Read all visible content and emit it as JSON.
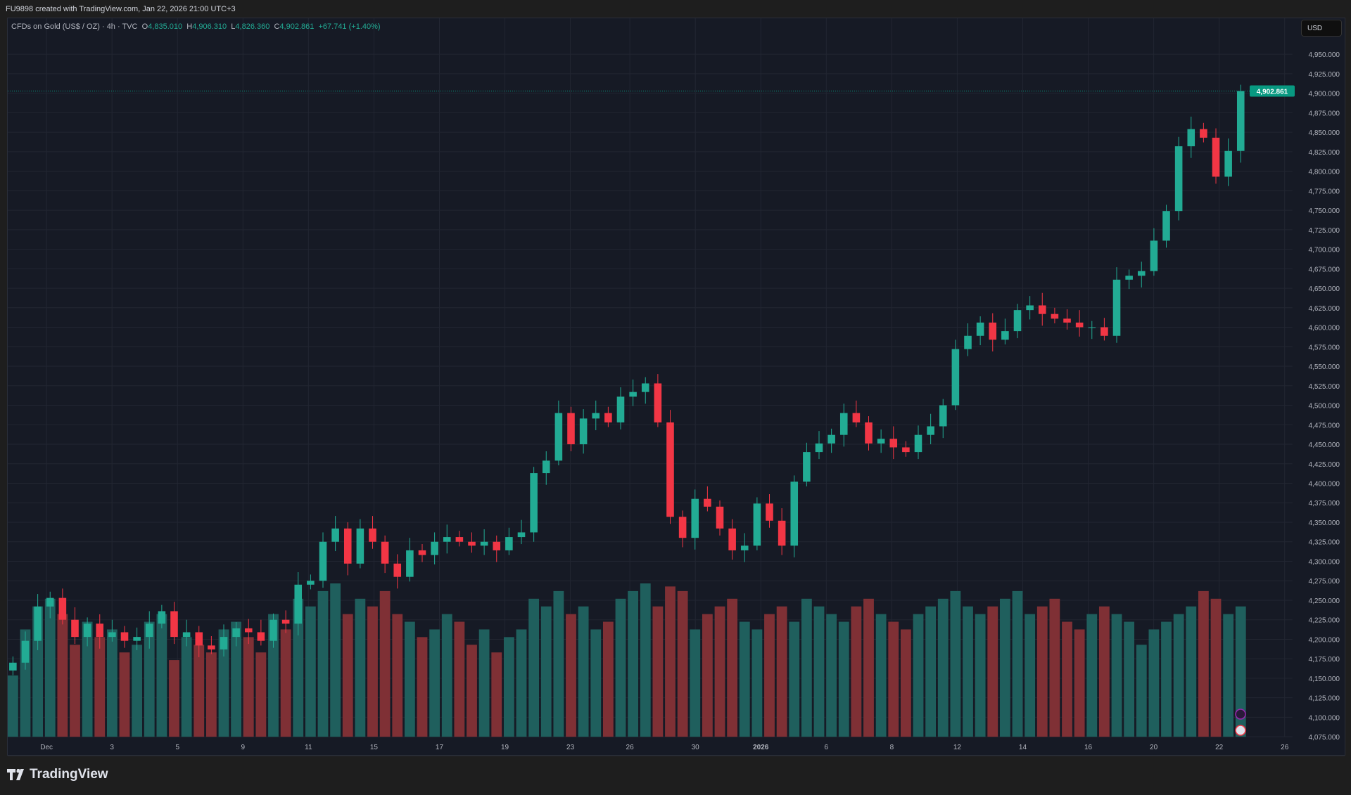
{
  "header": {
    "credit": "FU9898 created with TradingView.com, Jan 22, 2026 21:00 UTC+3"
  },
  "legend": {
    "symbol": "CFDs on Gold (US$ / OZ) · 4h · TVC",
    "o_label": "O",
    "o": "4,835.010",
    "h_label": "H",
    "h": "4,906.310",
    "l_label": "L",
    "l": "4,826.360",
    "c_label": "C",
    "c": "4,902.861",
    "change": "+67.741 (+1.40%)"
  },
  "currency_button": "USD",
  "last_price_label": "4,902.861",
  "footer": {
    "brand": "TradingView"
  },
  "colors": {
    "up": "#22ab94",
    "down": "#f23645",
    "vol_up": "#1f5f5d",
    "vol_down": "#7f3035",
    "background": "#161a25",
    "grid": "#222632",
    "last_price": "#089981"
  },
  "chart_data": {
    "type": "candlestick",
    "interval": "4h",
    "ylim": [
      4075,
      4950
    ],
    "y_ticks": [
      "4,075.000",
      "4,100.000",
      "4,125.000",
      "4,150.000",
      "4,175.000",
      "4,200.000",
      "4,225.000",
      "4,250.000",
      "4,275.000",
      "4,300.000",
      "4,325.000",
      "4,350.000",
      "4,375.000",
      "4,400.000",
      "4,425.000",
      "4,450.000",
      "4,475.000",
      "4,500.000",
      "4,525.000",
      "4,550.000",
      "4,575.000",
      "4,600.000",
      "4,625.000",
      "4,650.000",
      "4,675.000",
      "4,700.000",
      "4,725.000",
      "4,750.000",
      "4,775.000",
      "4,800.000",
      "4,825.000",
      "4,850.000",
      "4,875.000",
      "4,900.000",
      "4,925.000",
      "4,950.000"
    ],
    "x_ticks": [
      "Dec",
      "3",
      "5",
      "9",
      "11",
      "15",
      "17",
      "19",
      "23",
      "26",
      "30",
      "2026",
      "6",
      "8",
      "12",
      "14",
      "16",
      "20",
      "22",
      "26"
    ],
    "first_open": 4160,
    "close": [
      4170,
      4198,
      4242,
      4253,
      4225,
      4203,
      4220,
      4203,
      4209,
      4198,
      4203,
      4220,
      4236,
      4203,
      4209,
      4192,
      4187,
      4203,
      4214,
      4209,
      4198,
      4225,
      4220,
      4270,
      4275,
      4325,
      4342,
      4297,
      4342,
      4325,
      4297,
      4280,
      4314,
      4308,
      4325,
      4331,
      4325,
      4320,
      4325,
      4314,
      4331,
      4337,
      4413,
      4429,
      4490,
      4450,
      4483,
      4490,
      4478,
      4511,
      4517,
      4528,
      4478,
      4357,
      4330,
      4380,
      4370,
      4342,
      4314,
      4320,
      4374,
      4352,
      4320,
      4402,
      4440,
      4451,
      4462,
      4490,
      4478,
      4451,
      4457,
      4446,
      4440,
      4462,
      4473,
      4500,
      4572,
      4589,
      4606,
      4584,
      4595,
      4622,
      4628,
      4617,
      4611,
      4606,
      4600,
      4600,
      4589,
      4661,
      4666,
      4672,
      4711,
      4749,
      4832,
      4854,
      4843,
      4793,
      4826,
      4902.861
    ],
    "volume": [
      40,
      70,
      85,
      90,
      80,
      60,
      75,
      65,
      70,
      55,
      60,
      75,
      80,
      50,
      65,
      60,
      55,
      70,
      75,
      65,
      55,
      80,
      70,
      90,
      85,
      95,
      100,
      80,
      90,
      85,
      95,
      80,
      75,
      65,
      70,
      80,
      75,
      60,
      70,
      55,
      65,
      70,
      90,
      85,
      95,
      80,
      85,
      70,
      75,
      90,
      95,
      100,
      85,
      98,
      95,
      70,
      80,
      85,
      90,
      75,
      70,
      80,
      85,
      75,
      90,
      85,
      80,
      75,
      85,
      90,
      80,
      75,
      70,
      80,
      85,
      90,
      95,
      85,
      80,
      85,
      90,
      95,
      80,
      85,
      90,
      75,
      70,
      80,
      85,
      80,
      75,
      60,
      70,
      75,
      80,
      85,
      95,
      90,
      80,
      85
    ],
    "volume_max": 110
  }
}
